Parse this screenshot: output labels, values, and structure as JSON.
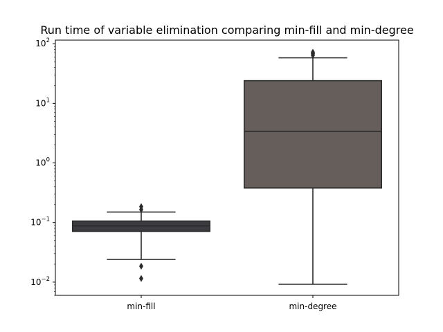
{
  "chart_data": {
    "type": "box",
    "title": "Run time of variable elimination comparing min-fill and min-degree",
    "xlabel": "",
    "ylabel": "",
    "yscale": "log",
    "ylim": [
      0.006,
      115
    ],
    "categories": [
      "min-fill",
      "min-degree"
    ],
    "yticks": [
      {
        "value": 0.01,
        "base": "10",
        "exp": "−2"
      },
      {
        "value": 0.1,
        "base": "10",
        "exp": "−1"
      },
      {
        "value": 1,
        "base": "10",
        "exp": "0"
      },
      {
        "value": 10,
        "base": "10",
        "exp": "1"
      },
      {
        "value": 100,
        "base": "10",
        "exp": "2"
      }
    ],
    "boxes": [
      {
        "category": "min-fill",
        "color": "#3b3b40",
        "whisker_low": 0.024,
        "q1": 0.071,
        "median": 0.088,
        "q3": 0.106,
        "whisker_high": 0.15,
        "outliers": [
          0.185,
          0.165,
          0.0185,
          0.0115
        ]
      },
      {
        "category": "min-degree",
        "color": "#665e5a",
        "whisker_low": 0.0092,
        "q1": 0.38,
        "median": 3.4,
        "q3": 24,
        "whisker_high": 58,
        "outliers": [
          64,
          68,
          72
        ]
      }
    ],
    "grid": false,
    "legend": "none"
  }
}
